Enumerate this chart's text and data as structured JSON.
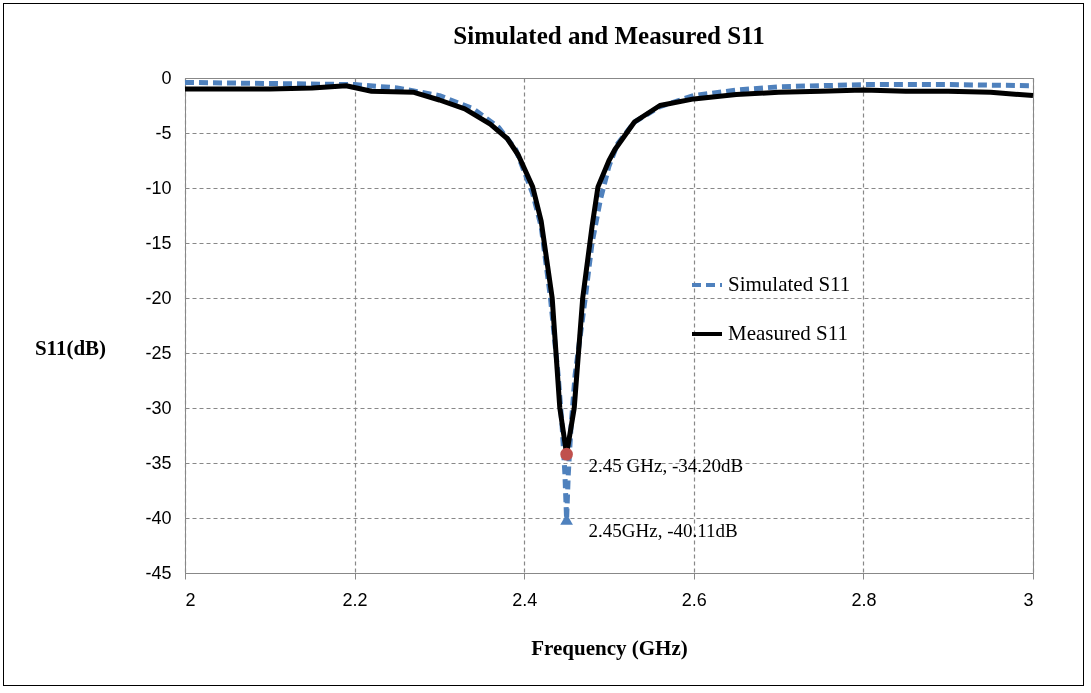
{
  "chart_data": {
    "type": "line",
    "title": "Simulated and Measured S11",
    "xlabel": "Frequency (GHz)",
    "ylabel": "S11(dB)",
    "xlim": [
      2,
      3
    ],
    "xticks": [
      2,
      2.2,
      2.4,
      2.6,
      2.8,
      3
    ],
    "ylim": [
      -45,
      0
    ],
    "yticks": [
      0,
      -5,
      -10,
      -15,
      -20,
      -25,
      -30,
      -35,
      -40,
      -45
    ],
    "grid": true,
    "legend": "right",
    "series": [
      {
        "name": "Simulated S11",
        "type": "line",
        "color": "#4f81bd",
        "line_style": "dashed",
        "x": [
          2.0,
          2.1,
          2.2,
          2.25,
          2.3,
          2.34,
          2.37,
          2.39,
          2.41,
          2.42,
          2.431,
          2.44,
          2.445,
          2.448,
          2.45,
          2.452,
          2.455,
          2.46,
          2.472,
          2.48,
          2.49,
          2.5,
          2.51,
          2.53,
          2.56,
          2.6,
          2.65,
          2.7,
          2.8,
          2.9,
          3.0
        ],
        "values": [
          -0.4,
          -0.5,
          -0.6,
          -0.9,
          -1.6,
          -2.8,
          -4.5,
          -6.5,
          -10.5,
          -13.5,
          -20,
          -27,
          -32,
          -36,
          -40.11,
          -36,
          -32,
          -27,
          -20,
          -15,
          -11,
          -8,
          -6,
          -4,
          -2.6,
          -1.6,
          -1.1,
          -0.8,
          -0.6,
          -0.6,
          -0.7
        ]
      },
      {
        "name": "Measured S11",
        "type": "line",
        "color": "#000000",
        "line_style": "solid",
        "x": [
          2.0,
          2.05,
          2.1,
          2.15,
          2.19,
          2.22,
          2.27,
          2.3,
          2.33,
          2.36,
          2.38,
          2.393,
          2.41,
          2.42,
          2.433,
          2.442,
          2.45,
          2.459,
          2.469,
          2.48,
          2.487,
          2.5,
          2.507,
          2.53,
          2.56,
          2.6,
          2.65,
          2.7,
          2.75,
          2.8,
          2.85,
          2.9,
          2.95,
          3.0
        ],
        "values": [
          -1.0,
          -1.0,
          -1.0,
          -0.9,
          -0.7,
          -1.2,
          -1.3,
          -2.0,
          -2.8,
          -4.2,
          -5.5,
          -7,
          -9.9,
          -13,
          -20,
          -30,
          -34.2,
          -30,
          -20,
          -13.5,
          -9.9,
          -7.5,
          -6.5,
          -4,
          -2.5,
          -1.9,
          -1.5,
          -1.3,
          -1.2,
          -1.1,
          -1.2,
          -1.2,
          -1.3,
          -1.6
        ]
      },
      {
        "type": "scatter",
        "marker": "circle",
        "color": "#c0504d",
        "x": [
          2.45
        ],
        "values": [
          -34.2
        ]
      },
      {
        "type": "scatter",
        "marker": "triangle",
        "color": "#4f81bd",
        "x": [
          2.45
        ],
        "values": [
          -40.11
        ]
      }
    ],
    "annotations": [
      {
        "text": "2.45 GHz, -34.20dB",
        "x": 2.45,
        "y": -34.2
      },
      {
        "text": "2.45GHz, -40.11dB",
        "x": 2.45,
        "y": -40.11
      }
    ]
  }
}
